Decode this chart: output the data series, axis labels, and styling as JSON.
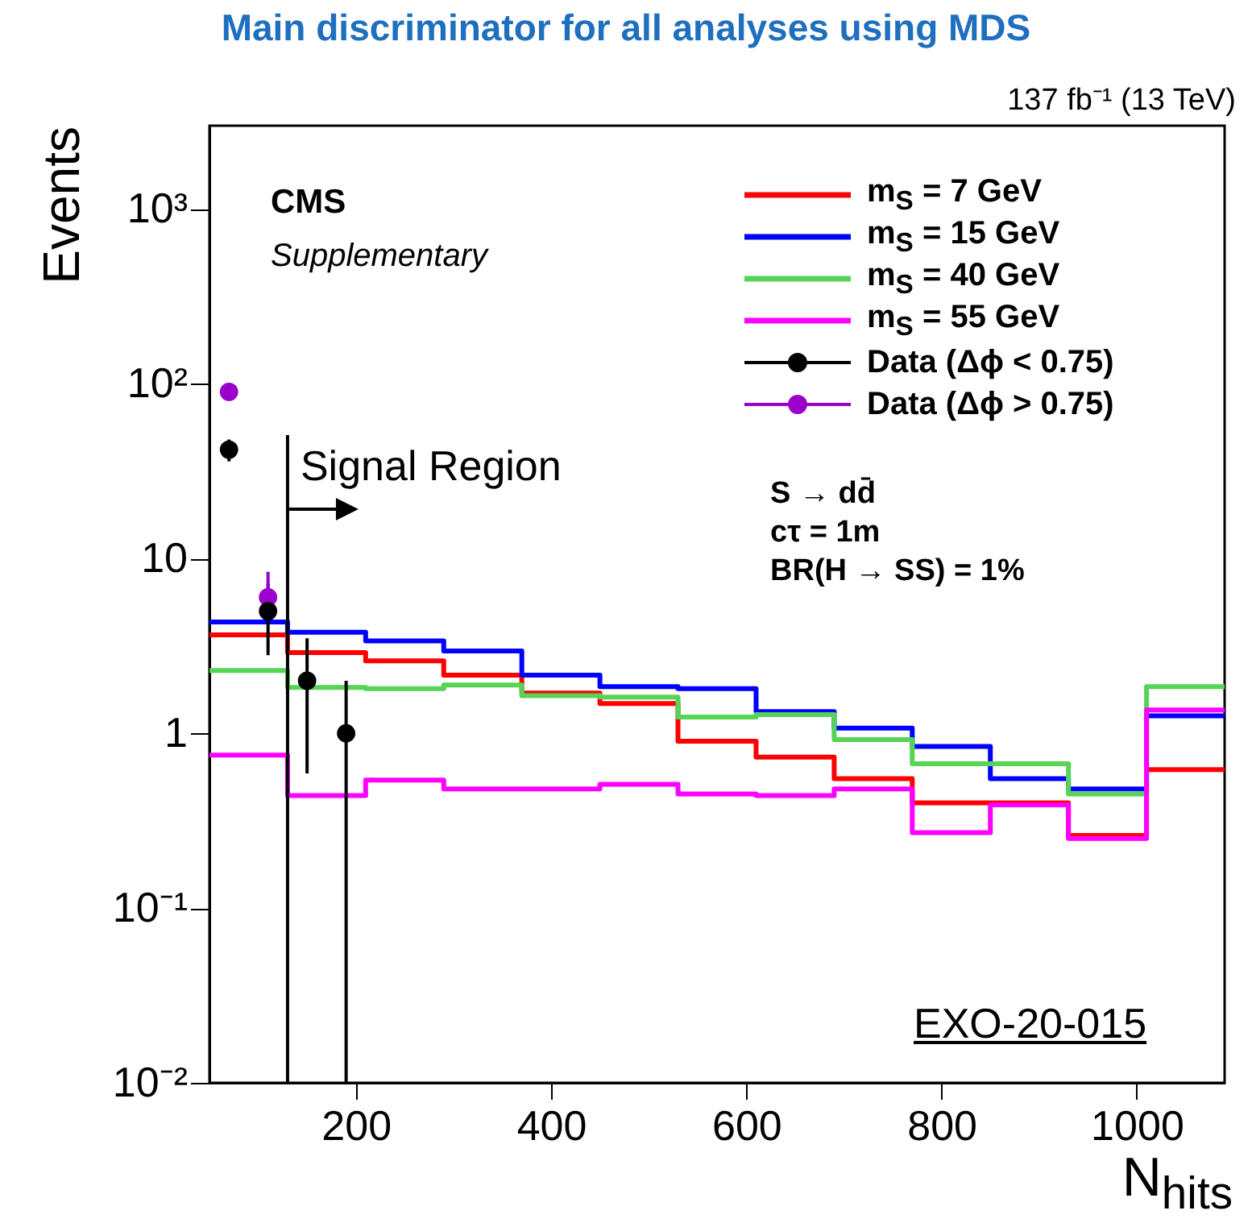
{
  "chart_data": {
    "type": "histogram",
    "title": "Main discriminator for all analyses using MDS",
    "xlabel": "N$_{hits}$",
    "ylabel": "Events",
    "bins": [
      50,
      130,
      210,
      290,
      370,
      450,
      530,
      610,
      690,
      770,
      850,
      930,
      1010,
      1090
    ],
    "series": [
      {
        "name": "m$_{S}$ = 7 GeV",
        "color": "#ff0000",
        "values": [
          3.66,
          2.9,
          2.6,
          2.15,
          1.7,
          1.48,
          0.9,
          0.73,
          0.55,
          0.4,
          0.4,
          0.26,
          0.62
        ]
      },
      {
        "name": "m$_{S}$ = 15 GeV",
        "color": "#0000ff",
        "values": [
          4.34,
          3.79,
          3.38,
          2.96,
          2.15,
          1.85,
          1.8,
          1.33,
          1.07,
          0.84,
          0.55,
          0.48,
          1.26
        ]
      },
      {
        "name": "m$_{S}$ = 40 GeV",
        "color": "#55d455",
        "values": [
          2.29,
          1.83,
          1.8,
          1.89,
          1.64,
          1.61,
          1.24,
          1.28,
          0.92,
          0.67,
          0.67,
          0.45,
          1.85
        ]
      },
      {
        "name": "m$_{S}$ = 55 GeV",
        "color": "#ff00ff",
        "values": [
          0.75,
          0.44,
          0.54,
          0.48,
          0.48,
          0.51,
          0.45,
          0.44,
          0.48,
          0.27,
          0.39,
          0.25,
          1.36
        ]
      },
      {
        "name": "Data (Δϕ < 0.75)",
        "type": "scatter",
        "marker": "circle",
        "color": "#000000",
        "x": [
          70,
          110,
          150,
          190
        ],
        "values": [
          42,
          5,
          2,
          1
        ],
        "errors": [
          [
            36,
            48
          ],
          [
            2.8,
            7.2
          ],
          [
            0.59,
            3.5
          ],
          [
            0.01,
            2
          ]
        ]
      },
      {
        "name": "Data (Δϕ > 0.75)",
        "type": "scatter",
        "marker": "circle",
        "color": "#9900cc",
        "x": [
          70,
          110
        ],
        "values": [
          90,
          6
        ],
        "errors": [
          null,
          [
            4.5,
            8.4
          ]
        ]
      }
    ],
    "xlim": [
      50,
      1090
    ],
    "xticks": [
      200,
      400,
      600,
      800,
      1000
    ],
    "ylim": [
      0.01,
      3000
    ],
    "yticks": [
      {
        "value": 0.01,
        "label": "10⁻²"
      },
      {
        "value": 0.1,
        "label": "10⁻¹"
      },
      1,
      10,
      {
        "value": 100,
        "label": "10²"
      },
      {
        "value": 1000,
        "label": "10³"
      }
    ],
    "log": "y",
    "legend": "top right",
    "ref_lines": [
      {
        "axis": "x",
        "value": 130,
        "label": "Signal Region",
        "color": "#000000"
      }
    ],
    "annotations": [
      "CMS",
      "Supplementary",
      "S → dd̄",
      "cτ = 1m",
      "BR(H → SS) = 1%",
      "EXO-20-015",
      "137 fb⁻¹ (13 TeV)"
    ]
  }
}
